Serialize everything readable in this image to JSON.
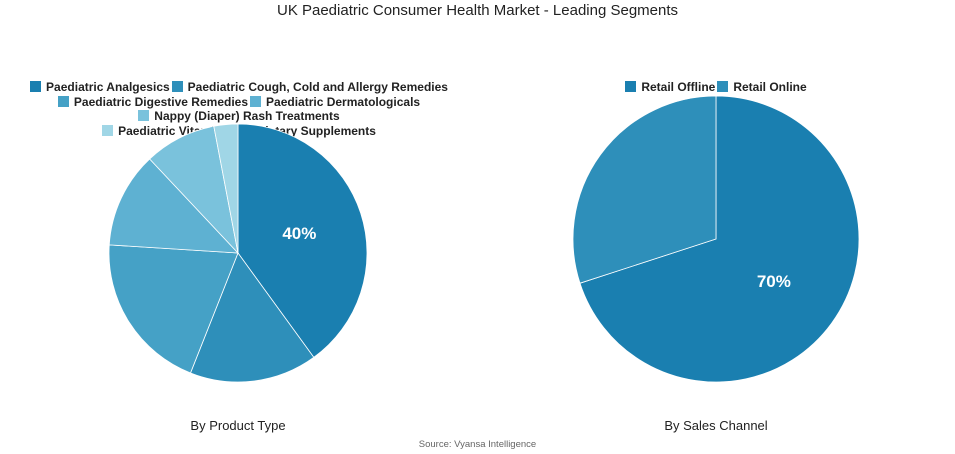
{
  "title": "UK Paediatric Consumer Health Market - Leading Segments",
  "source": "Source: Vyansa Intelligence",
  "chart_data": [
    {
      "type": "pie",
      "subtitle": "By Product Type",
      "legend_placement": "top",
      "labels": [
        "Paediatric Analgesics",
        "Paediatric Cough, Cold and Allergy Remedies",
        "Paediatric Digestive Remedies",
        "Paediatric Dermatologicals",
        "Nappy (Diaper) Rash Treatments",
        "Paediatric Vitamins and Dietary Supplements"
      ],
      "values": [
        40,
        16,
        20,
        12,
        9,
        3
      ],
      "colors": [
        "#1a7fb0",
        "#2e8fba",
        "#45a1c6",
        "#5eb1d2",
        "#7ac2dc",
        "#a0d6e6"
      ],
      "data_labels": [
        "40%",
        "",
        "",
        "",
        "",
        ""
      ]
    },
    {
      "type": "pie",
      "subtitle": "By Sales Channel",
      "legend_placement": "top",
      "labels": [
        "Retail Offline",
        "Retail Online"
      ],
      "values": [
        70,
        30
      ],
      "colors": [
        "#1a7fb0",
        "#2e8fba"
      ],
      "data_labels": [
        "70%",
        ""
      ]
    }
  ]
}
